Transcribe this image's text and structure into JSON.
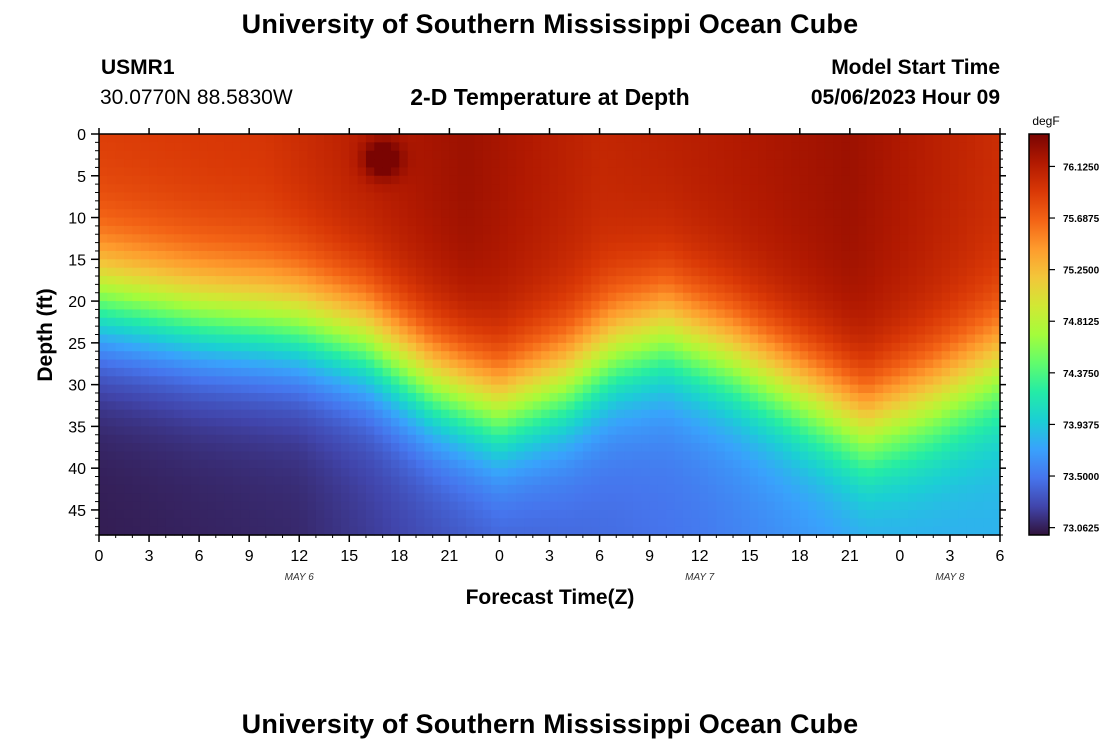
{
  "header": {
    "title": "University of Southern Mississippi Ocean Cube",
    "station_id": "USMR1",
    "coordinates": "30.0770N  88.5830W",
    "subtitle": "2-D Temperature at Depth",
    "model_start_label": "Model Start Time",
    "model_start_value": "05/06/2023 Hour 09"
  },
  "footer": {
    "title": "University of Southern Mississippi Ocean Cube"
  },
  "chart_data": {
    "type": "heatmap",
    "title": "2-D Temperature at Depth",
    "xlabel": "Forecast Time(Z)",
    "ylabel": "Depth (ft)",
    "x_tick_labels": [
      "0",
      "3",
      "6",
      "9",
      "12",
      "15",
      "18",
      "21",
      "0",
      "3",
      "6",
      "9",
      "12",
      "15",
      "18",
      "21",
      "0",
      "3",
      "6"
    ],
    "x_range_hours": [
      0,
      54
    ],
    "date_labels": [
      {
        "label": "MAY 6",
        "hour": 12
      },
      {
        "label": "MAY 7",
        "hour": 36
      },
      {
        "label": "MAY 8",
        "hour": 51
      }
    ],
    "y_tick_labels": [
      "0",
      "5",
      "10",
      "15",
      "20",
      "25",
      "30",
      "35",
      "40",
      "45"
    ],
    "y_range_ft": [
      0,
      48
    ],
    "colorbar": {
      "unit": "degF",
      "min": 73.0,
      "max": 76.4,
      "tick_labels": [
        "76.1250",
        "75.6875",
        "75.2500",
        "74.8125",
        "74.3750",
        "73.9375",
        "73.5000",
        "73.0625"
      ],
      "colormap": [
        "#30123b",
        "#4145ab",
        "#4675ed",
        "#39a2fc",
        "#1bcfd4",
        "#24eca6",
        "#61fc6c",
        "#a4fc3b",
        "#d1e834",
        "#f3c63a",
        "#fe9b2d",
        "#f36315",
        "#d93806",
        "#b11901",
        "#7a0402"
      ]
    },
    "thermocline_depth_ft": [
      {
        "hour": 0,
        "depth": 20
      },
      {
        "hour": 6,
        "depth": 22
      },
      {
        "hour": 12,
        "depth": 23
      },
      {
        "hour": 16,
        "depth": 25
      },
      {
        "hour": 20,
        "depth": 30
      },
      {
        "hour": 24,
        "depth": 33
      },
      {
        "hour": 28,
        "depth": 30
      },
      {
        "hour": 31,
        "depth": 26
      },
      {
        "hour": 34,
        "depth": 24
      },
      {
        "hour": 38,
        "depth": 27
      },
      {
        "hour": 43,
        "depth": 32
      },
      {
        "hour": 46,
        "depth": 35
      },
      {
        "hour": 50,
        "depth": 32
      },
      {
        "hour": 54,
        "depth": 28
      }
    ],
    "surface_temp_degF": [
      {
        "hour": 0,
        "temp": 75.9
      },
      {
        "hour": 10,
        "temp": 75.95
      },
      {
        "hour": 15,
        "temp": 76.1
      },
      {
        "hour": 22,
        "temp": 76.25
      },
      {
        "hour": 30,
        "temp": 76.05
      },
      {
        "hour": 38,
        "temp": 76.15
      },
      {
        "hour": 45,
        "temp": 76.25
      },
      {
        "hour": 54,
        "temp": 76.0
      }
    ],
    "bottom_temp_degF": [
      {
        "hour": 0,
        "temp": 73.05
      },
      {
        "hour": 12,
        "temp": 73.1
      },
      {
        "hour": 24,
        "temp": 73.35
      },
      {
        "hour": 36,
        "temp": 73.5
      },
      {
        "hour": 48,
        "temp": 73.75
      },
      {
        "hour": 54,
        "temp": 73.8
      }
    ],
    "warm_spot": {
      "hour": 17,
      "depth": 3,
      "temp": 76.6
    }
  }
}
